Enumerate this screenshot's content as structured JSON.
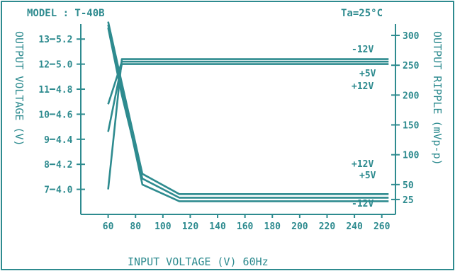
{
  "chart_data": {
    "type": "line",
    "title": "MODEL : T-40B",
    "condition": "Ta=25°C",
    "xlabel": "INPUT VOLTAGE (V) 60Hz",
    "ylabel_left": "OUTPUT VOLTAGE (V)",
    "ylabel_right": "OUTPUT RIPPLE (mVp-p)",
    "xlim": [
      40,
      270
    ],
    "x_ticks": [
      60,
      80,
      100,
      120,
      140,
      160,
      180,
      200,
      220,
      240,
      260
    ],
    "left_axis": {
      "ylim": [
        6.0,
        13.6
      ],
      "ticks": [
        7,
        8,
        9,
        10,
        11,
        12,
        13
      ],
      "ticks_5v": [
        "4.0",
        "4.2",
        "4.4",
        "4.6",
        "4.8",
        "5.0",
        "5.2"
      ]
    },
    "right_axis": {
      "ylim": [
        0,
        319
      ],
      "ticks": [
        25,
        50,
        100,
        150,
        200,
        250,
        300
      ]
    },
    "series": [
      {
        "name": "+12V",
        "axis": "left",
        "role": "voltage",
        "x": [
          60,
          70,
          265
        ],
        "y": [
          9.3,
          12.0,
          12.0
        ]
      },
      {
        "name": "+5V",
        "axis": "left",
        "role": "voltage",
        "x": [
          60,
          70,
          265
        ],
        "y": [
          10.4,
          12.1,
          12.1
        ]
      },
      {
        "name": "-12V",
        "axis": "left",
        "role": "voltage",
        "x": [
          60,
          70,
          265
        ],
        "y": [
          7.0,
          12.2,
          12.2
        ]
      },
      {
        "name": "+12V",
        "axis": "right",
        "role": "ripple",
        "x": [
          60,
          70,
          85,
          112,
          265
        ],
        "y": [
          313,
          200,
          60,
          28,
          28
        ]
      },
      {
        "name": "+5V",
        "axis": "right",
        "role": "ripple",
        "x": [
          60,
          70,
          85,
          112,
          265
        ],
        "y": [
          318,
          210,
          50,
          22,
          22
        ]
      },
      {
        "name": "-12V",
        "axis": "right",
        "role": "ripple",
        "x": [
          60,
          70,
          85,
          112,
          265
        ],
        "y": [
          323,
          220,
          68,
          34,
          34
        ]
      }
    ],
    "annotations": [
      {
        "text": "-12V",
        "group": "voltage"
      },
      {
        "text": "+5V",
        "group": "voltage"
      },
      {
        "text": "+12V",
        "group": "voltage"
      },
      {
        "text": "+12V",
        "group": "ripple"
      },
      {
        "text": "+5V",
        "group": "ripple"
      },
      {
        "text": "-12V",
        "group": "ripple"
      }
    ],
    "grid": false,
    "color": "#2e8b8f"
  }
}
